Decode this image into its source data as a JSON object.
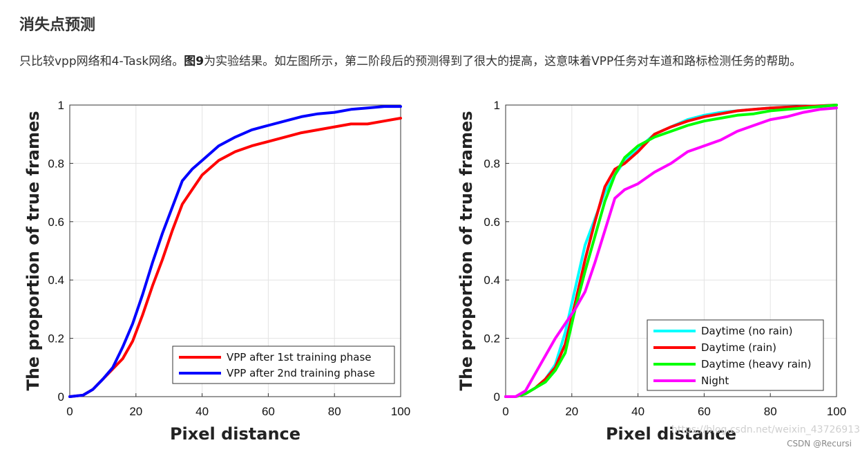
{
  "article": {
    "heading": "消失点预测",
    "para_part1": "只比较vpp网络和4-Task网络。",
    "para_fig": "图9",
    "para_part2": "为实验结果。如左图所示，第二阶段后的预测得到了很大的提高，这意味着VPP任务对车道和路标检测任务的帮助。"
  },
  "watermark": "CSDN @Recursi",
  "watermark_url": "https://blog.csdn.net/weixin_43726913",
  "chart_data": [
    {
      "type": "line",
      "title": "",
      "xlabel": "Pixel distance",
      "ylabel": "The proportion of true frames",
      "xlim": [
        0,
        100
      ],
      "ylim": [
        0,
        1
      ],
      "xticks": [
        "0",
        "20",
        "40",
        "60",
        "80",
        "100"
      ],
      "yticks": [
        "0",
        "0.2",
        "0.4",
        "0.6",
        "0.8",
        "1"
      ],
      "grid": true,
      "legend_position": "bottom-right",
      "series": [
        {
          "name": "VPP after 1st training phase",
          "color": "#ff0000",
          "x": [
            0,
            4,
            7,
            10,
            13,
            16,
            19,
            22,
            25,
            28,
            31,
            34,
            37,
            40,
            45,
            50,
            55,
            60,
            65,
            70,
            75,
            80,
            85,
            90,
            95,
            100
          ],
          "y": [
            0,
            0.005,
            0.025,
            0.06,
            0.095,
            0.13,
            0.19,
            0.28,
            0.38,
            0.47,
            0.57,
            0.66,
            0.71,
            0.76,
            0.81,
            0.84,
            0.86,
            0.875,
            0.89,
            0.905,
            0.915,
            0.925,
            0.935,
            0.935,
            0.945,
            0.955
          ]
        },
        {
          "name": "VPP after 2nd training phase",
          "color": "#0000ff",
          "x": [
            0,
            4,
            7,
            10,
            13,
            16,
            19,
            22,
            25,
            28,
            31,
            34,
            37,
            40,
            45,
            50,
            55,
            60,
            65,
            70,
            75,
            80,
            85,
            90,
            95,
            100
          ],
          "y": [
            0,
            0.005,
            0.025,
            0.06,
            0.1,
            0.17,
            0.25,
            0.35,
            0.46,
            0.56,
            0.65,
            0.74,
            0.78,
            0.81,
            0.86,
            0.89,
            0.915,
            0.93,
            0.945,
            0.96,
            0.97,
            0.975,
            0.985,
            0.99,
            0.995,
            0.995
          ]
        }
      ]
    },
    {
      "type": "line",
      "title": "",
      "xlabel": "Pixel distance",
      "ylabel": "The proportion of true frames",
      "xlim": [
        0,
        100
      ],
      "ylim": [
        0,
        1
      ],
      "xticks": [
        "0",
        "20",
        "40",
        "60",
        "80",
        "100"
      ],
      "yticks": [
        "0",
        "0.2",
        "0.4",
        "0.6",
        "0.8",
        "1"
      ],
      "grid": true,
      "legend_position": "bottom-right",
      "series": [
        {
          "name": "Daytime (no rain)",
          "color": "#00ffff",
          "x": [
            0,
            3,
            6,
            9,
            12,
            15,
            18,
            21,
            24,
            27,
            30,
            33,
            36,
            40,
            45,
            50,
            55,
            60,
            65,
            70,
            75,
            80,
            85,
            90,
            95,
            100
          ],
          "y": [
            0,
            0,
            0.01,
            0.03,
            0.06,
            0.11,
            0.22,
            0.37,
            0.52,
            0.61,
            0.7,
            0.76,
            0.81,
            0.85,
            0.9,
            0.925,
            0.95,
            0.965,
            0.975,
            0.98,
            0.985,
            0.99,
            0.993,
            0.995,
            0.997,
            1
          ]
        },
        {
          "name": "Daytime (rain)",
          "color": "#ff0000",
          "x": [
            0,
            3,
            6,
            9,
            12,
            15,
            18,
            21,
            24,
            27,
            30,
            33,
            36,
            40,
            45,
            50,
            55,
            60,
            65,
            70,
            75,
            80,
            85,
            90,
            95,
            100
          ],
          "y": [
            0,
            0,
            0.01,
            0.03,
            0.06,
            0.1,
            0.18,
            0.32,
            0.47,
            0.6,
            0.72,
            0.78,
            0.8,
            0.84,
            0.9,
            0.925,
            0.945,
            0.96,
            0.97,
            0.98,
            0.985,
            0.99,
            0.993,
            0.995,
            0.997,
            1
          ]
        },
        {
          "name": "Daytime (heavy rain)",
          "color": "#00ff00",
          "x": [
            0,
            3,
            6,
            9,
            12,
            15,
            18,
            21,
            24,
            27,
            30,
            33,
            36,
            40,
            45,
            50,
            55,
            60,
            65,
            70,
            75,
            80,
            85,
            90,
            95,
            100
          ],
          "y": [
            0,
            0,
            0.01,
            0.03,
            0.05,
            0.09,
            0.15,
            0.3,
            0.43,
            0.55,
            0.67,
            0.76,
            0.82,
            0.86,
            0.89,
            0.91,
            0.93,
            0.945,
            0.955,
            0.965,
            0.97,
            0.98,
            0.985,
            0.99,
            0.995,
            1
          ]
        },
        {
          "name": "Night",
          "color": "#ff00ff",
          "x": [
            0,
            3,
            6,
            9,
            12,
            15,
            18,
            21,
            24,
            27,
            30,
            33,
            36,
            40,
            45,
            50,
            55,
            60,
            65,
            70,
            75,
            80,
            85,
            90,
            95,
            100
          ],
          "y": [
            0,
            0,
            0.02,
            0.08,
            0.14,
            0.2,
            0.25,
            0.3,
            0.36,
            0.46,
            0.57,
            0.68,
            0.71,
            0.73,
            0.77,
            0.8,
            0.84,
            0.86,
            0.88,
            0.91,
            0.93,
            0.95,
            0.96,
            0.975,
            0.985,
            0.99
          ]
        }
      ]
    }
  ]
}
